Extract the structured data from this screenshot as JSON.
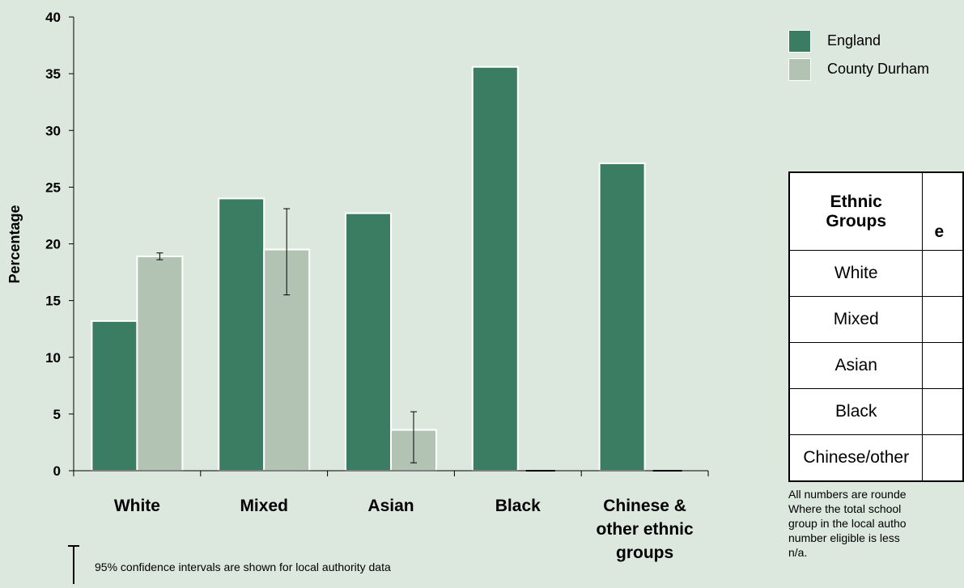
{
  "chart_data": {
    "type": "bar",
    "categories": [
      "White",
      "Mixed",
      "Asian",
      "Black",
      "Chinese & other ethnic groups"
    ],
    "category_lines": [
      [
        "White"
      ],
      [
        "Mixed"
      ],
      [
        "Asian"
      ],
      [
        "Black"
      ],
      [
        "Chinese &",
        "other ethnic",
        "groups"
      ]
    ],
    "series": [
      {
        "name": "England",
        "values": [
          13.2,
          24.0,
          22.7,
          35.6,
          27.1
        ],
        "color": "#3a7d63"
      },
      {
        "name": "County Durham",
        "values": [
          18.9,
          19.5,
          3.6,
          0,
          0
        ],
        "color": "#b2c3b3",
        "ci": [
          [
            18.6,
            19.2
          ],
          [
            15.5,
            23.1
          ],
          [
            0.7,
            5.2
          ],
          null,
          null
        ]
      }
    ],
    "ylabel": "Percentage",
    "ylim": [
      0,
      40
    ],
    "yticks": [
      0,
      5,
      10,
      15,
      20,
      25,
      30,
      35,
      40
    ],
    "ci_note": "95% confidence intervals are shown for local authority data"
  },
  "legend": [
    {
      "label": "England",
      "color": "#3a7d63"
    },
    {
      "label": "County Durham",
      "color": "#b2c3b3"
    }
  ],
  "table": {
    "headers": [
      "Ethnic Groups",
      "e"
    ],
    "rows": [
      "White",
      "Mixed",
      "Asian",
      "Black",
      "Chinese/other"
    ]
  },
  "footnote_lines": [
    "All numbers are rounde",
    "Where the total school",
    "group in the local autho",
    "number eligible is less",
    "n/a."
  ]
}
